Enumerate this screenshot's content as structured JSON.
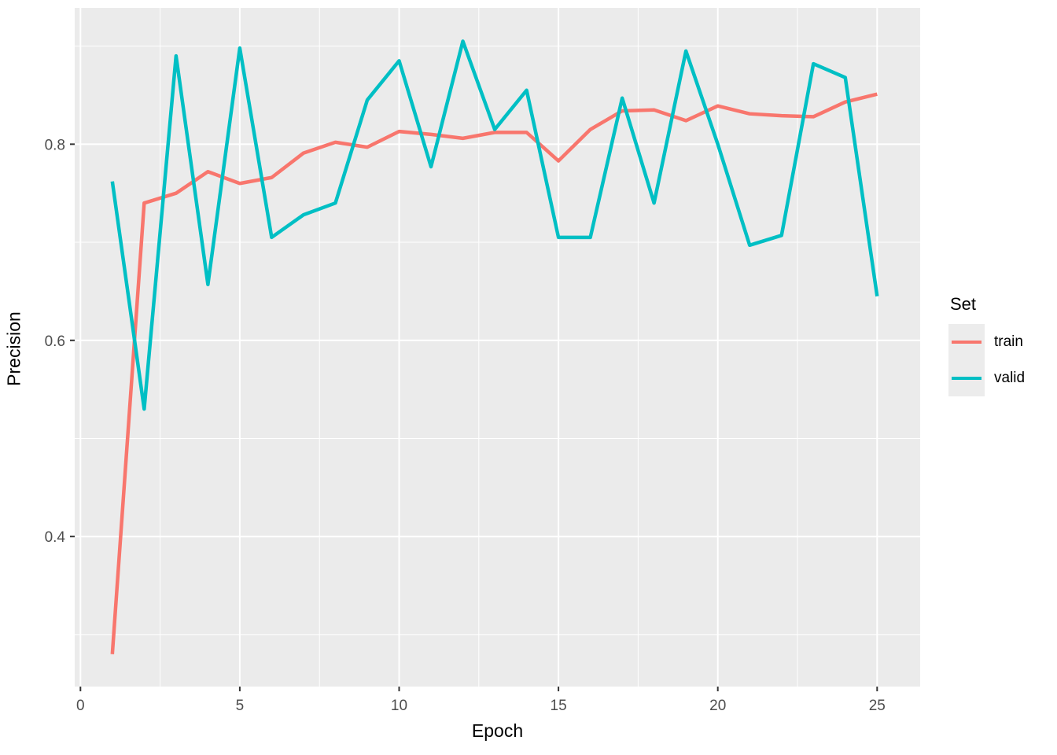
{
  "chart": {
    "xlabel": "Epoch",
    "ylabel": "Precision",
    "legend": {
      "title": "Set",
      "entries": [
        {
          "label": "train",
          "color": "#F8766D"
        },
        {
          "label": "valid",
          "color": "#00BFC4"
        }
      ]
    }
  },
  "chart_data": {
    "type": "line",
    "title": "",
    "xlabel": "Epoch",
    "ylabel": "Precision",
    "x": [
      1,
      2,
      3,
      4,
      5,
      6,
      7,
      8,
      9,
      10,
      11,
      12,
      13,
      14,
      15,
      16,
      17,
      18,
      19,
      20,
      21,
      22,
      23,
      24,
      25
    ],
    "series": [
      {
        "name": "train",
        "color": "#F8766D",
        "values": [
          0.28,
          0.74,
          0.75,
          0.772,
          0.76,
          0.766,
          0.791,
          0.802,
          0.797,
          0.813,
          0.81,
          0.806,
          0.812,
          0.812,
          0.783,
          0.815,
          0.834,
          0.835,
          0.824,
          0.839,
          0.831,
          0.829,
          0.828,
          0.843,
          0.851
        ]
      },
      {
        "name": "valid",
        "color": "#00BFC4",
        "values": [
          0.762,
          0.53,
          0.89,
          0.657,
          0.898,
          0.705,
          0.728,
          0.74,
          0.845,
          0.885,
          0.777,
          0.905,
          0.815,
          0.855,
          0.705,
          0.705,
          0.847,
          0.74,
          0.895,
          0.8,
          0.697,
          0.707,
          0.882,
          0.868,
          0.645
        ]
      }
    ],
    "x_ticks": [
      0,
      5,
      10,
      15,
      20,
      25
    ],
    "x_tick_labels": [
      "0",
      "5",
      "10",
      "15",
      "20",
      "25"
    ],
    "y_ticks": [
      0.4,
      0.6,
      0.8
    ],
    "y_tick_labels": [
      "0.4",
      "0.6",
      "0.8"
    ],
    "x_minor_ticks": [
      2.5,
      7.5,
      12.5,
      17.5,
      22.5
    ],
    "y_minor_ticks": [
      0.3,
      0.5,
      0.7,
      0.9
    ],
    "xlim": [
      -0.18,
      26.35
    ],
    "ylim": [
      0.247,
      0.939
    ],
    "grid": true,
    "legend_position": "right",
    "panel_bg": "#EBEBEB",
    "grid_color": "#FFFFFF",
    "tick_label_color": "#4D4D4D",
    "tick_mark_color": "#333333"
  }
}
